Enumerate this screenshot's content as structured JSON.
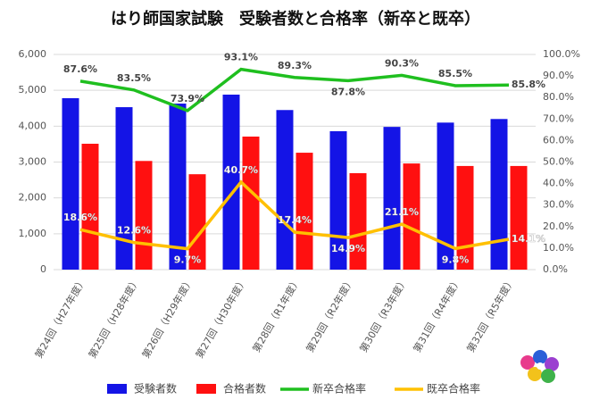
{
  "chart_data": {
    "type": "bar_line",
    "title": "はり師国家試験　受験者数と合格率（新卒と既卒）",
    "categories": [
      "第24回（H27年度）",
      "第25回（H28年度）",
      "第26回（H29年度）",
      "第27回（H30年度）",
      "第28回（R1年度）",
      "第29回（R2年度）",
      "第30回（R3年度）",
      "第31回（R4年度）",
      "第32回（R5年度）"
    ],
    "series": [
      {
        "name": "受験者数",
        "color": "#1414e6",
        "kind": "bar",
        "values": [
          4780,
          4530,
          4630,
          4880,
          4450,
          3860,
          3980,
          4100,
          4200
        ]
      },
      {
        "name": "合格者数",
        "color": "#ff1010",
        "kind": "bar",
        "values": [
          3510,
          3030,
          2660,
          3710,
          3260,
          2690,
          2960,
          2890,
          2890
        ]
      },
      {
        "name": "新卒合格率",
        "color": "#1fbf1f",
        "kind": "line",
        "axis": "y2",
        "values": [
          87.6,
          83.5,
          73.9,
          93.1,
          89.3,
          87.8,
          90.3,
          85.5,
          85.8
        ],
        "value_labels": [
          "87.6%",
          "83.5%",
          "73.9%",
          "93.1%",
          "89.3%",
          "87.8%",
          "90.3%",
          "85.5%",
          "85.8%"
        ]
      },
      {
        "name": "既卒合格率",
        "color": "#ffc000",
        "kind": "line",
        "axis": "y2",
        "values": [
          18.6,
          12.6,
          9.7,
          40.7,
          17.4,
          14.9,
          21.1,
          9.8,
          14.1
        ],
        "value_labels": [
          "18.6%",
          "12.6%",
          "9.7%",
          "40.7%",
          "17.4%",
          "14.9%",
          "21.1%",
          "9.8%",
          "14.1%"
        ]
      }
    ],
    "ylim": [
      0,
      6000
    ],
    "yticks": [
      0,
      {
        "value": 1000,
        "label": "1,000"
      },
      {
        "value": 2000,
        "label": "2,000"
      },
      {
        "value": 3000,
        "label": "3,000"
      },
      {
        "value": 4000,
        "label": "4,000"
      },
      {
        "value": 5000,
        "label": "5,000"
      },
      {
        "value": 6000,
        "label": "6,000"
      }
    ],
    "y2lim": [
      0,
      100
    ],
    "y2ticks": [
      {
        "value": 0,
        "label": "0.0%"
      },
      {
        "value": 10,
        "label": "10.0%"
      },
      {
        "value": 20,
        "label": "20.0%"
      },
      {
        "value": 30,
        "label": "30.0%"
      },
      {
        "value": 40,
        "label": "40.0%"
      },
      {
        "value": 50,
        "label": "50.0%"
      },
      {
        "value": 60,
        "label": "60.0%"
      },
      {
        "value": 70,
        "label": "70.0%"
      },
      {
        "value": 80,
        "label": "80.0%"
      },
      {
        "value": 90,
        "label": "90.0%"
      },
      {
        "value": 100,
        "label": "100.0%"
      }
    ],
    "grid": true
  }
}
